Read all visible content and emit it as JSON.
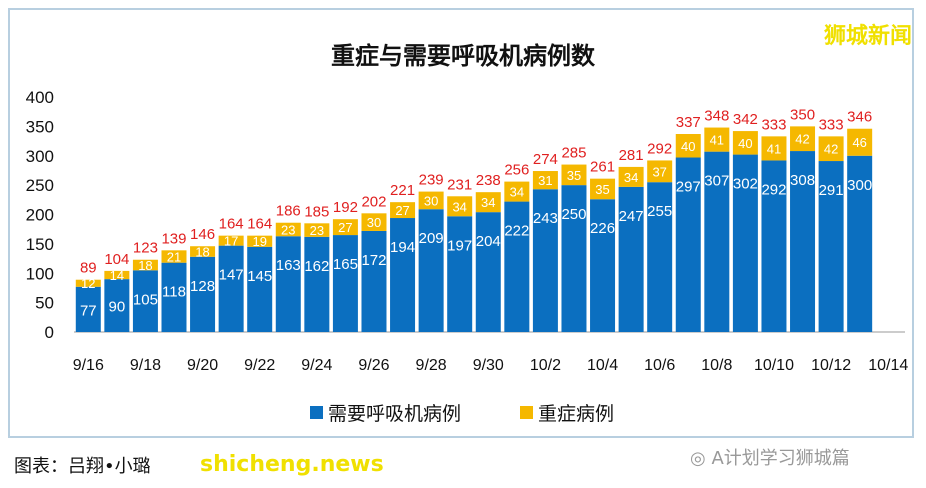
{
  "watermark": "狮城新闻",
  "footer": "图表：吕翔•小璐",
  "footer_watermark": "shicheng.news",
  "wechat_label": "A计划学习狮城篇",
  "chart_data": {
    "type": "bar",
    "stacked": true,
    "title": "重症与需要呼吸机病例数",
    "categories": [
      "9/16",
      "9/17",
      "9/18",
      "9/19",
      "9/20",
      "9/21",
      "9/22",
      "9/23",
      "9/24",
      "9/25",
      "9/26",
      "9/27",
      "9/28",
      "9/29",
      "9/30",
      "10/1",
      "10/2",
      "10/3",
      "10/4",
      "10/5",
      "10/6",
      "10/7",
      "10/8",
      "10/9",
      "10/10",
      "10/11",
      "10/12",
      "10/13"
    ],
    "x_tick_labels": [
      "9/16",
      "9/18",
      "9/20",
      "9/22",
      "9/24",
      "9/26",
      "9/28",
      "9/30",
      "10/2",
      "10/4",
      "10/6",
      "10/8",
      "10/10",
      "10/12",
      "10/14"
    ],
    "series": [
      {
        "name": "需要呼吸机病例",
        "color": "#0b6fc0",
        "values": [
          77,
          90,
          105,
          118,
          128,
          147,
          145,
          163,
          162,
          165,
          172,
          194,
          209,
          197,
          204,
          222,
          243,
          250,
          226,
          247,
          255,
          297,
          307,
          302,
          292,
          308,
          291,
          300
        ]
      },
      {
        "name": "重症病例",
        "color": "#f5b800",
        "values": [
          12,
          14,
          18,
          21,
          18,
          17,
          19,
          23,
          23,
          27,
          30,
          27,
          30,
          34,
          34,
          34,
          31,
          35,
          35,
          34,
          37,
          40,
          41,
          40,
          41,
          42,
          42,
          46
        ]
      }
    ],
    "totals": [
      89,
      104,
      123,
      139,
      146,
      164,
      164,
      186,
      185,
      192,
      202,
      221,
      239,
      231,
      238,
      256,
      274,
      285,
      261,
      281,
      292,
      337,
      348,
      342,
      333,
      350,
      333,
      346
    ],
    "total_label_color": "#e02020",
    "ylim": [
      0,
      400
    ],
    "yticks": [
      0,
      50,
      100,
      150,
      200,
      250,
      300,
      350,
      400
    ],
    "grid": false,
    "legend": "bottom"
  }
}
